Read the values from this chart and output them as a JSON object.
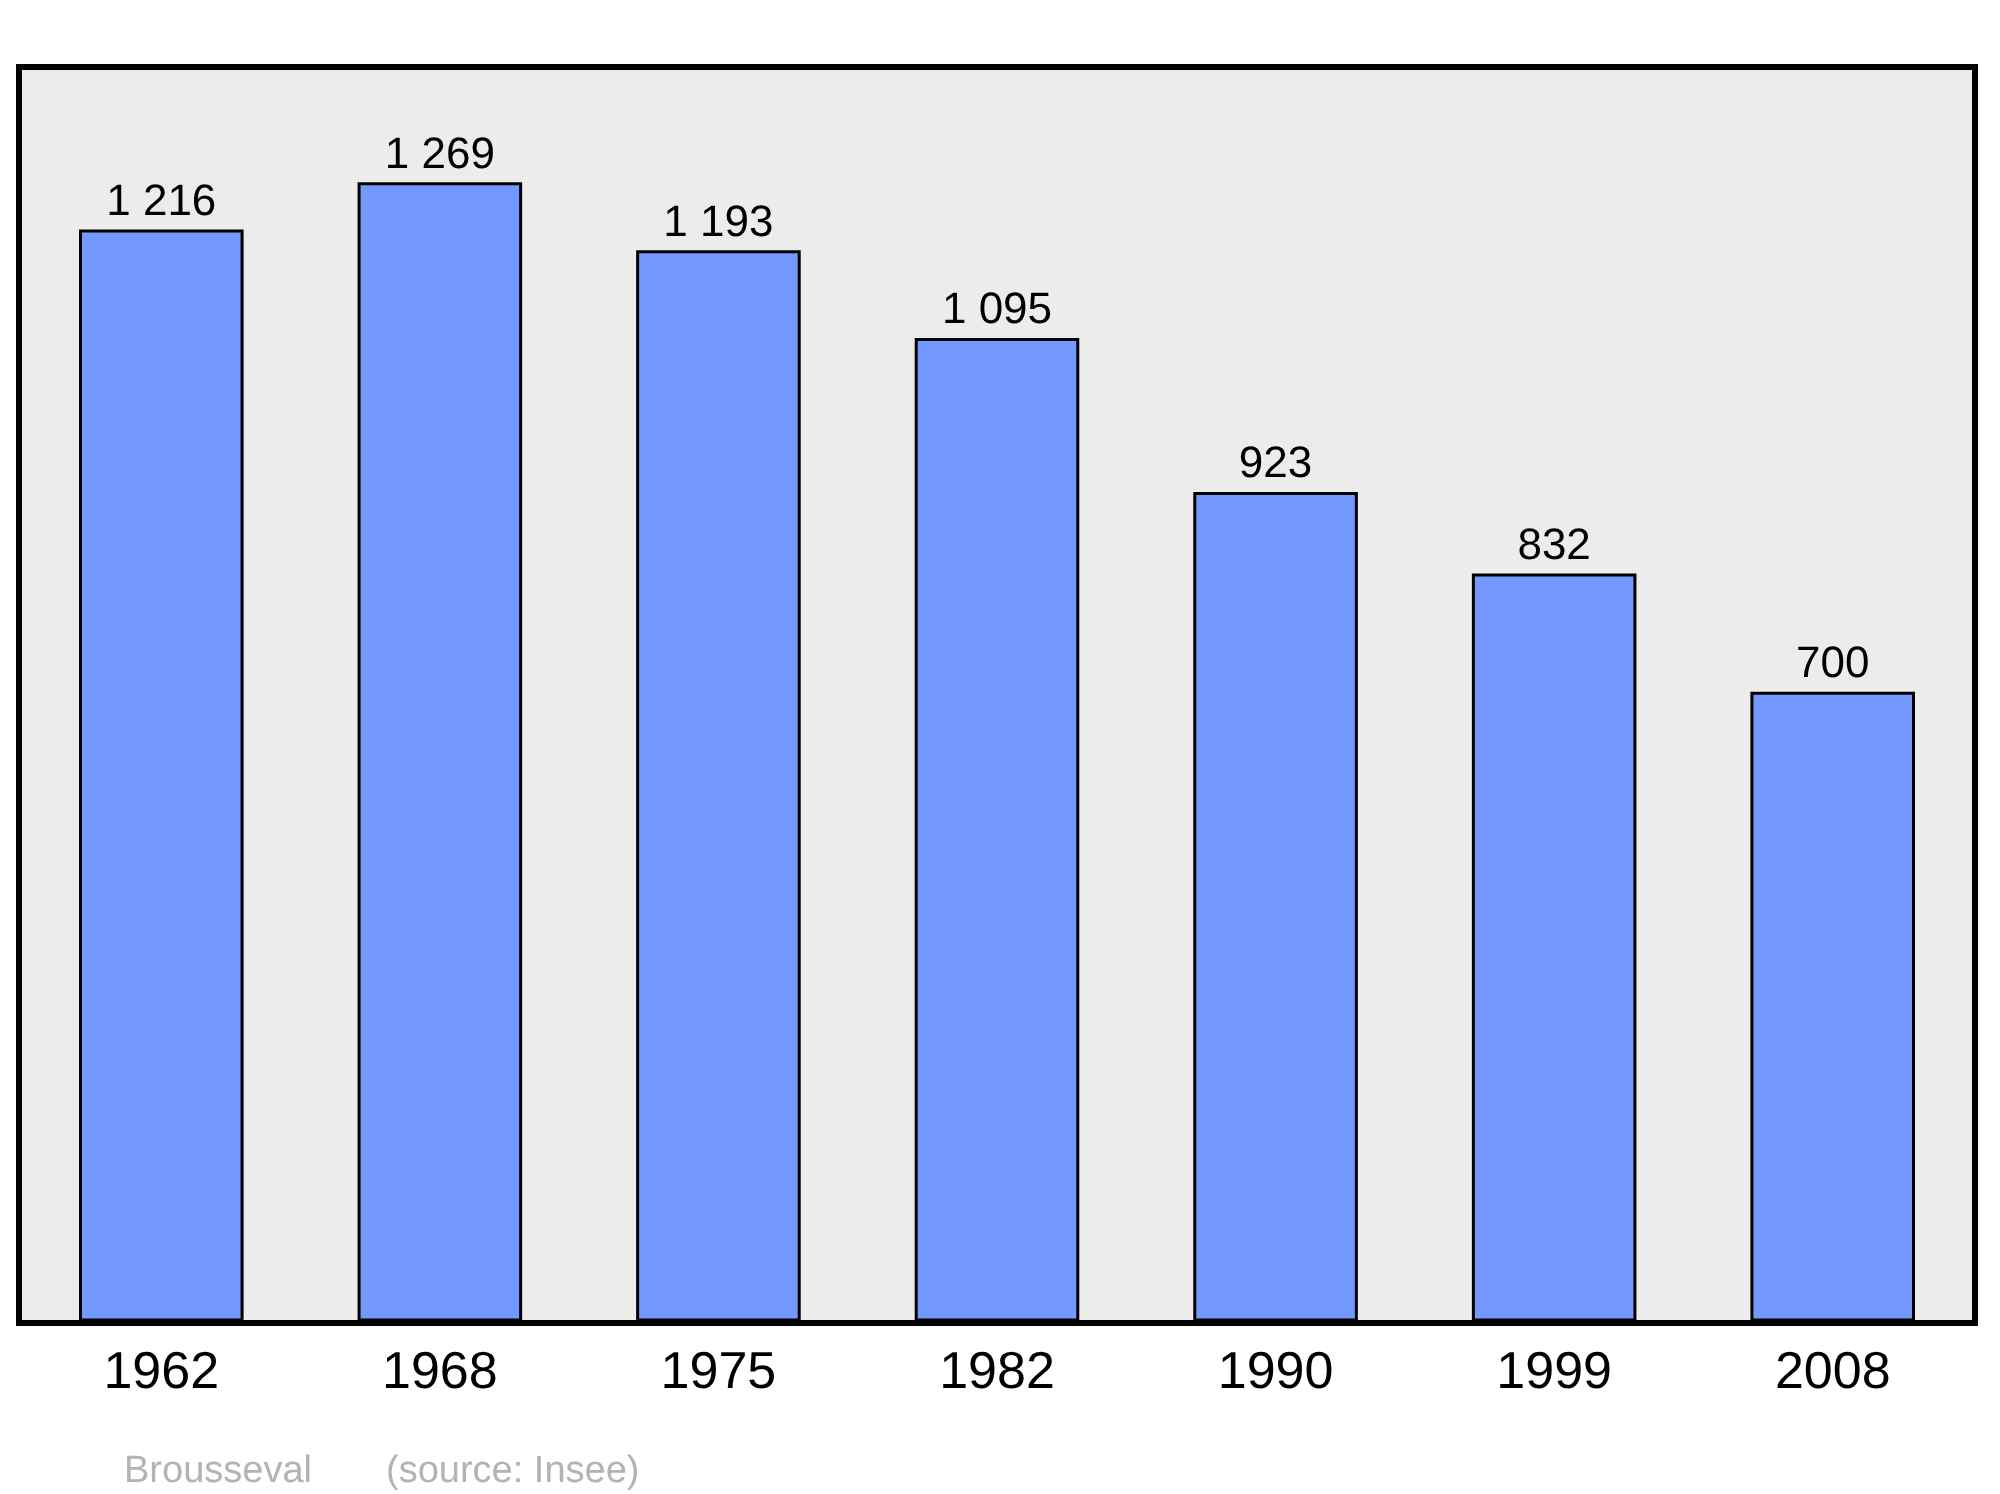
{
  "chart_data": {
    "type": "bar",
    "categories": [
      "1962",
      "1968",
      "1975",
      "1982",
      "1990",
      "1999",
      "2008"
    ],
    "values": [
      1216,
      1269,
      1193,
      1095,
      923,
      832,
      700
    ],
    "value_labels": [
      "1 216",
      "1 269",
      "1 193",
      "1 095",
      "923",
      "832",
      "700"
    ],
    "color": "#7399ff",
    "annotations": [
      "Brousseval",
      "(source: Insee)"
    ],
    "grid": false,
    "legend": false
  }
}
